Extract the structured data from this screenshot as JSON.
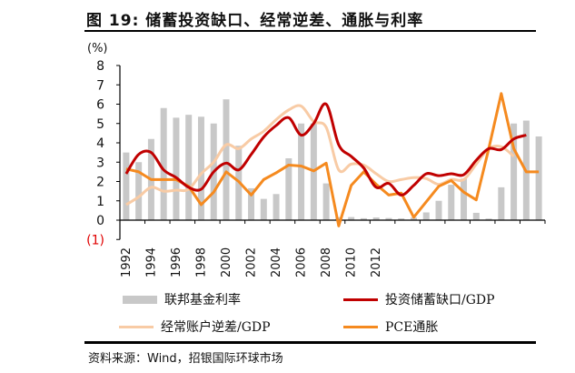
{
  "title": "图 19: 储蓄投资缺口、经常逆差、通胀与利率",
  "source": "资料来源：Wind，招银国际环球市场",
  "chart_data": {
    "type": "bar+line",
    "ylabel": "(%)",
    "ylim": [
      -1,
      8
    ],
    "yticks": [
      "(1)",
      "0",
      "1",
      "2",
      "3",
      "4",
      "5",
      "6",
      "7",
      "8"
    ],
    "categories": [
      1992,
      1993,
      1994,
      1995,
      1996,
      1997,
      1998,
      1999,
      2000,
      2001,
      2002,
      2003,
      2004,
      2005,
      2006,
      2007,
      2008,
      2009,
      2010,
      2011,
      2012,
      2013,
      2014,
      2015,
      2016,
      2017,
      2018,
      2019,
      2020,
      2021,
      2022,
      2023,
      2024,
      2025
    ],
    "xtick_labels": [
      "1992",
      "1994",
      "1996",
      "1998",
      "2000",
      "2002",
      "2004",
      "2006",
      "2008",
      "2010",
      "2012"
    ],
    "legend_placement": "bottom",
    "series": [
      {
        "name": "联邦基金利率",
        "kind": "bar",
        "color": "#c8c8c8",
        "values": [
          3.5,
          3.0,
          4.2,
          5.8,
          5.3,
          5.45,
          5.35,
          5.0,
          6.25,
          3.85,
          1.65,
          1.1,
          1.35,
          3.2,
          5.0,
          5.0,
          1.9,
          0.15,
          0.16,
          0.1,
          0.14,
          0.11,
          0.09,
          0.13,
          0.4,
          1.0,
          1.83,
          2.15,
          0.38,
          0.08,
          1.7,
          5.0,
          5.15,
          4.33
        ]
      },
      {
        "name": "投资储蓄缺口/GDP",
        "kind": "line",
        "smooth": true,
        "color": "#c00000",
        "values": [
          2.4,
          3.4,
          3.5,
          2.6,
          2.2,
          1.7,
          1.6,
          2.5,
          2.95,
          2.6,
          3.4,
          4.3,
          4.9,
          5.3,
          4.4,
          5.0,
          6.0,
          3.9,
          3.3,
          2.7,
          1.7,
          1.9,
          1.3,
          1.8,
          2.4,
          2.3,
          2.4,
          2.35,
          3.1,
          3.7,
          3.65,
          4.2,
          4.4,
          null
        ]
      },
      {
        "name": "经常账户逆差/GDP",
        "kind": "line",
        "smooth": true,
        "color": "#f8cba5",
        "values": [
          0.8,
          1.2,
          1.7,
          1.5,
          1.55,
          1.6,
          2.4,
          3.0,
          3.9,
          3.7,
          4.2,
          4.6,
          5.2,
          5.7,
          5.9,
          5.1,
          4.8,
          2.6,
          2.9,
          2.85,
          2.4,
          2.0,
          2.1,
          2.2,
          2.15,
          1.85,
          2.1,
          2.1,
          2.9,
          3.7,
          3.8,
          3.3,
          null,
          null
        ]
      },
      {
        "name": "PCE通胀",
        "kind": "line",
        "smooth": false,
        "color": "#f58a1f",
        "values": [
          2.65,
          2.5,
          2.1,
          2.1,
          2.1,
          1.75,
          0.8,
          1.45,
          2.5,
          2.0,
          1.3,
          2.1,
          2.45,
          2.85,
          2.8,
          2.55,
          2.95,
          -0.3,
          1.8,
          2.5,
          1.85,
          1.3,
          1.4,
          0.15,
          0.95,
          1.75,
          2.05,
          1.45,
          1.05,
          3.7,
          6.55,
          3.7,
          2.5,
          2.5
        ]
      }
    ]
  }
}
